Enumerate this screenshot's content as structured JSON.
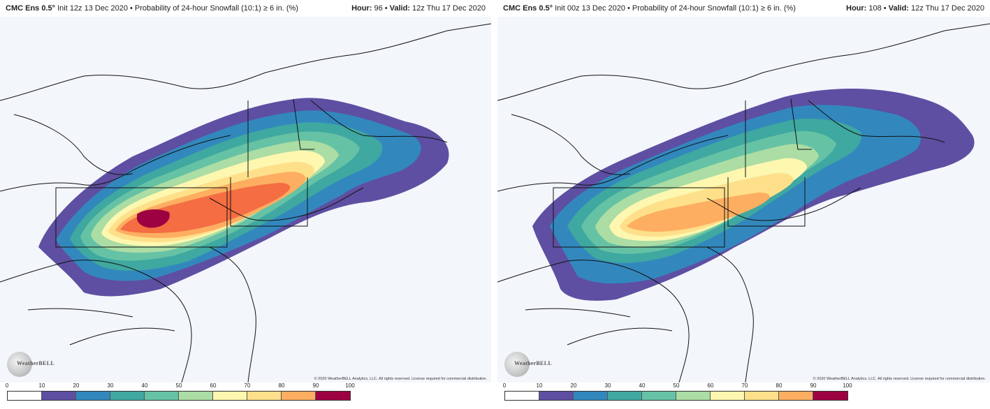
{
  "panels": [
    {
      "model": "CMC Ens 0.5°",
      "init": "Init 12z 13 Dec 2020",
      "product": "Probability of 24-hour Snowfall (10:1) ≥ 6 in. (%)",
      "hour_label": "Hour:",
      "hour": "96",
      "valid_label": "Valid:",
      "valid": "12z Thu 17 Dec 2020",
      "copyright": "© 2020 WeatherBELL Analytics, LLC. All rights reserved. License required for commercial distribution.",
      "logo_text": "WeatherBELL"
    },
    {
      "model": "CMC Ens 0.5°",
      "init": "Init 00z 13 Dec 2020",
      "product": "Probability of 24-hour Snowfall (10:1) ≥ 6 in. (%)",
      "hour_label": "Hour:",
      "hour": "108",
      "valid_label": "Valid:",
      "valid": "12z Thu 17 Dec 2020",
      "copyright": "© 2020 WeatherBELL Analytics, LLC. All rights reserved. License required for commercial distribution.",
      "logo_text": "WeatherBELL"
    }
  ],
  "colorbar": {
    "ticks": [
      "0",
      "10",
      "20",
      "30",
      "40",
      "50",
      "60",
      "70",
      "80",
      "90",
      "100"
    ],
    "colors": [
      "#ffffff",
      "#5e4fa2",
      "#3288bd",
      "#3fa8a0",
      "#66c2a5",
      "#abdda4",
      "#fdf7b0",
      "#fee08b",
      "#fdae61",
      "#f46d43",
      "#9e0142"
    ]
  },
  "map_colors": {
    "background": "#f3f6fb",
    "borders": "#111111"
  }
}
